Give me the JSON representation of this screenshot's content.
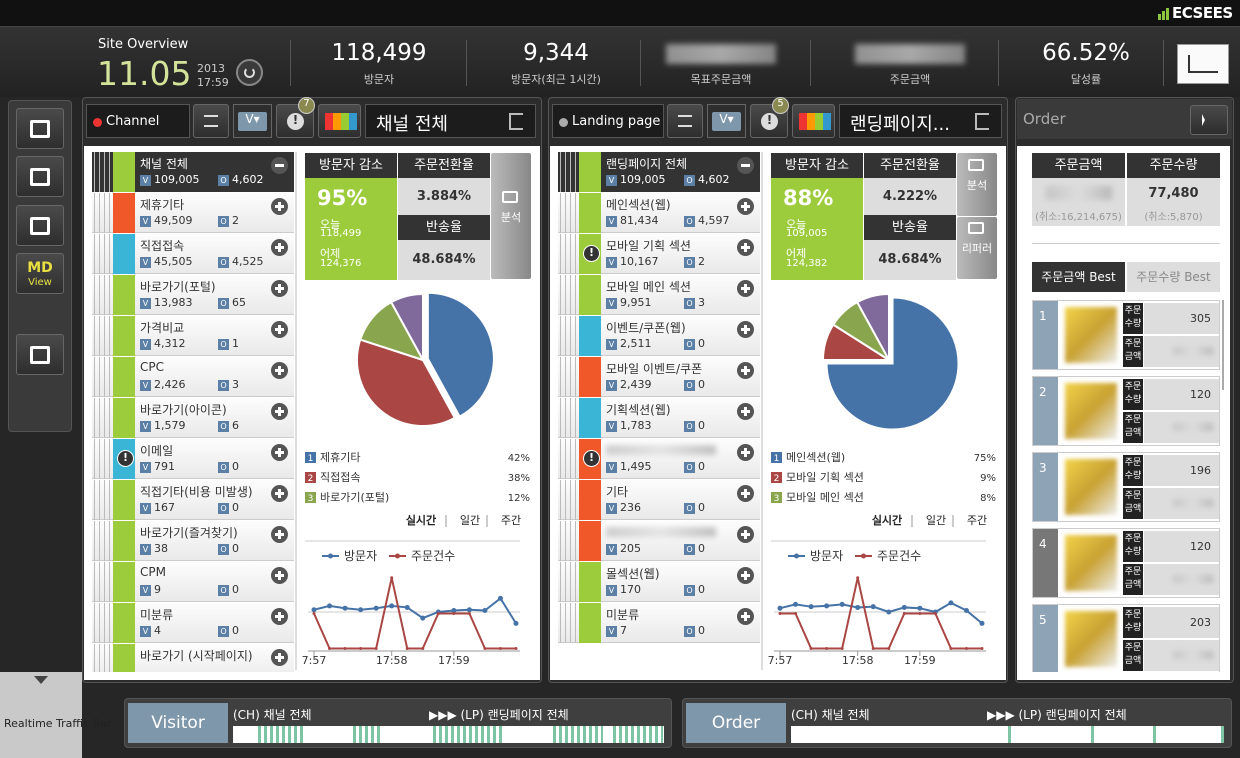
{
  "header": {
    "brand": "ECSEES",
    "site_overview": "Site Overview",
    "date": "11.05",
    "year": "2013",
    "time": "17:59",
    "stats": [
      {
        "value": "118,499",
        "label": "방문자"
      },
      {
        "value": "9,344",
        "label": "방문자(최근 1시간)"
      },
      {
        "label": "목표주문금액"
      },
      {
        "label": "주문금액"
      },
      {
        "value": "66.52%",
        "label": "달성률"
      }
    ]
  },
  "sidebar": {
    "md": "MD",
    "view": "View"
  },
  "icons": {
    "v": "V",
    "o": "O",
    "alert": "!",
    "dropdown": "V▾"
  },
  "panels": [
    {
      "tab": "Channel",
      "badge": "7",
      "title": "채널 전체",
      "items": [
        {
          "name": "채널 전체",
          "v": "109,005",
          "o": "4,602",
          "color": "#9ccc3c"
        },
        {
          "name": "제휴기타",
          "v": "49,509",
          "o": "2",
          "color": "#f0582a"
        },
        {
          "name": "직접접속",
          "v": "45,505",
          "o": "4,525",
          "color": "#3ab5d6"
        },
        {
          "name": "바로가기(포털)",
          "v": "13,983",
          "o": "65",
          "color": "#9ccc3c"
        },
        {
          "name": "가격비교",
          "v": "4,312",
          "o": "1",
          "color": "#9ccc3c"
        },
        {
          "name": "CPC",
          "v": "2,426",
          "o": "3",
          "color": "#9ccc3c"
        },
        {
          "name": "바로가기(아이콘)",
          "v": "1,579",
          "o": "6",
          "color": "#9ccc3c"
        },
        {
          "name": "이메일",
          "v": "791",
          "o": "0",
          "color": "#3ab5d6",
          "alert": true
        },
        {
          "name": "직접기타(비용 미발생)",
          "v": "167",
          "o": "0",
          "color": "#9ccc3c"
        },
        {
          "name": "바로가기(즐겨찾기)",
          "v": "38",
          "o": "0",
          "color": "#9ccc3c"
        },
        {
          "name": "CPM",
          "v": "9",
          "o": "0",
          "color": "#9ccc3c"
        },
        {
          "name": "미분류",
          "v": "4",
          "o": "0",
          "color": "#9ccc3c"
        },
        {
          "name": "바로가기 (시작페이지)",
          "color": "#9ccc3c"
        }
      ],
      "summary": {
        "decrease_label": "방문자 감소",
        "conversion_label": "주문전환율",
        "percent": "95%",
        "today_label": "오늘",
        "today": "118,499",
        "yesterday_label": "어제",
        "yesterday": "124,376",
        "conversion": "3.884%",
        "bounce_label": "반송율",
        "bounce": "48.684%",
        "buttons": [
          "분석"
        ]
      },
      "pie": {
        "type": "pie",
        "slices": [
          {
            "rank": 1,
            "name": "제휴기타",
            "value": 42,
            "value_label": "42%",
            "color": "#4572a7"
          },
          {
            "rank": 2,
            "name": "직접접속",
            "value": 38,
            "value_label": "38%",
            "color": "#aa4643"
          },
          {
            "rank": 3,
            "name": "바로가기(포털)",
            "value": 12,
            "value_label": "12%",
            "color": "#89a54e"
          },
          {
            "name": null,
            "value": 8,
            "color": "#80699b"
          }
        ]
      },
      "periods": [
        "실시간",
        "일간",
        "주간"
      ],
      "line_chart": {
        "type": "line",
        "ylim": [
          0,
          100
        ],
        "categories": [
          "7:57",
          null,
          null,
          null,
          null,
          "17:58",
          null,
          null,
          null,
          "17:59",
          null,
          null,
          null,
          null
        ],
        "series": [
          {
            "name": "방문자",
            "color": "#4572a7",
            "values": [
              53,
              58,
              55,
              53,
              55,
              58,
              56,
              42,
              50,
              52,
              53,
              52,
              68,
              35
            ]
          },
          {
            "name": "주문건수",
            "color": "#aa4643",
            "values": [
              48,
              2,
              2,
              2,
              2,
              95,
              2,
              2,
              48,
              48,
              48,
              2,
              2,
              2
            ]
          }
        ]
      }
    },
    {
      "tab": "Landing page",
      "badge": "5",
      "title": "랜딩페이지...",
      "items": [
        {
          "name": "랜딩페이지 전체",
          "v": "109,005",
          "o": "4,602",
          "color": "#9ccc3c"
        },
        {
          "name": "메인섹션(웹)",
          "v": "81,434",
          "o": "4,597",
          "color": "#9ccc3c"
        },
        {
          "name": "모바일 기획 섹션",
          "v": "10,167",
          "o": "2",
          "color": "#9ccc3c",
          "alert": true
        },
        {
          "name": "모바일 메인 섹션",
          "v": "9,951",
          "o": "3",
          "color": "#9ccc3c"
        },
        {
          "name": "이벤트/쿠폰(웹)",
          "v": "2,511",
          "o": "0",
          "color": "#3ab5d6"
        },
        {
          "name": "모바일 이벤트/쿠폰",
          "v": "2,439",
          "o": "0",
          "color": "#f0582a"
        },
        {
          "name": "기획섹션(웹)",
          "v": "1,783",
          "o": "0",
          "color": "#3ab5d6"
        },
        {
          "name": null,
          "v": "1,495",
          "o": "0",
          "color": "#f0582a",
          "alert": true
        },
        {
          "name": "기타",
          "v": "236",
          "o": "0",
          "color": "#f0582a"
        },
        {
          "name": null,
          "v": "205",
          "o": "0",
          "color": "#f0582a"
        },
        {
          "name": "몰섹션(웹)",
          "v": "170",
          "o": "0",
          "color": "#9ccc3c"
        },
        {
          "name": "미분류",
          "v": "7",
          "o": "0",
          "color": "#9ccc3c"
        }
      ],
      "summary": {
        "decrease_label": "방문자 감소",
        "conversion_label": "주문전환율",
        "percent": "88%",
        "today_label": "오늘",
        "today": "109,005",
        "yesterday_label": "어제",
        "yesterday": "124,382",
        "conversion": "4.222%",
        "bounce_label": "반송율",
        "bounce": "48.684%",
        "buttons": [
          "분석",
          "리퍼러"
        ]
      },
      "pie": {
        "type": "pie",
        "slices": [
          {
            "rank": 1,
            "name": "메인섹션(웹)",
            "value": 75,
            "value_label": "75%",
            "color": "#4572a7"
          },
          {
            "rank": 2,
            "name": "모바일 기획 섹션",
            "value": 9,
            "value_label": "9%",
            "color": "#aa4643"
          },
          {
            "rank": 3,
            "name": "모바일 메인 섹션",
            "value": 8,
            "value_label": "8%",
            "color": "#89a54e"
          },
          {
            "name": null,
            "value": 8,
            "color": "#80699b"
          }
        ]
      },
      "periods": [
        "실시간",
        "일간",
        "주간"
      ],
      "line_chart": {
        "type": "line",
        "ylim": [
          0,
          100
        ],
        "categories": [
          "7:57",
          null,
          null,
          null,
          null,
          "17:58",
          null,
          null,
          null,
          "17:59",
          null,
          null,
          null,
          null
        ],
        "series": [
          {
            "name": "방문자",
            "color": "#4572a7",
            "values": [
              55,
              60,
              57,
              58,
              60,
              56,
              57,
              50,
              56,
              55,
              50,
              62,
              52,
              35
            ]
          },
          {
            "name": "주문건수",
            "color": "#aa4643",
            "values": [
              48,
              48,
              2,
              2,
              2,
              95,
              2,
              2,
              48,
              48,
              48,
              2,
              2,
              2
            ]
          }
        ]
      }
    }
  ],
  "order": {
    "title": "Order",
    "headers": [
      "주문금액",
      "주문수량"
    ],
    "amount_cancel": "(취소:16,214,675)",
    "qty": "77,480",
    "qty_cancel": "(취소:5,870)",
    "tabs": [
      "주문금액 Best",
      "주문수량 Best"
    ],
    "qty_label": "주문 수량",
    "amount_label": "주문 금액",
    "items": [
      {
        "rank": 1,
        "qty": 305
      },
      {
        "rank": 2,
        "qty": 120
      },
      {
        "rank": 3,
        "qty": 196
      },
      {
        "rank": 4,
        "qty": 120
      },
      {
        "rank": 5,
        "qty": 203
      }
    ]
  },
  "traffic": {
    "label": "Realtime Traffic Bar",
    "bars": [
      {
        "button": "Visitor",
        "from": "(CH) 채널 전체",
        "to": "▶▶▶ (LP) 랜딩페이지 전체"
      },
      {
        "button": "Order",
        "from": "(CH) 채널 전체",
        "to": "▶▶▶ (LP) 랜딩페이지 전체"
      }
    ]
  }
}
